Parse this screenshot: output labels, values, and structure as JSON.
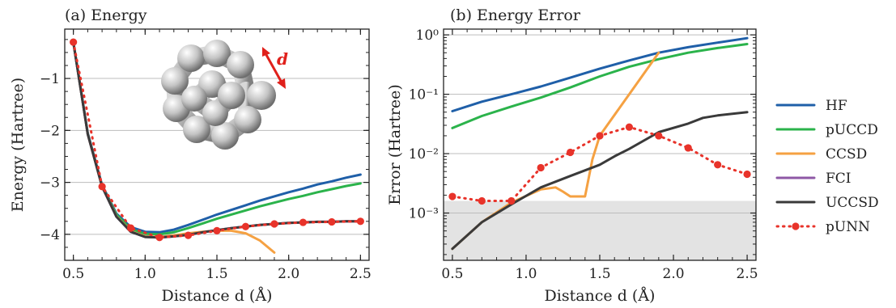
{
  "colors": {
    "HF": "#1f5fa8",
    "pUCCD": "#2bb34b",
    "CCSD": "#f5a142",
    "FCI": "#8e58a6",
    "UCCSD": "#3a3a3a",
    "pUNN": "#e8332a",
    "chem_acc_band": "#e3e3e3",
    "grid": "#bdbdbd"
  },
  "legend": {
    "placement": "right-outside",
    "entries": [
      "HF",
      "pUCCD",
      "CCSD",
      "FCI",
      "UCCSD",
      "pUNN"
    ]
  },
  "chart_data": [
    {
      "type": "line",
      "title": "(a) Energy",
      "xlabel": "Distance d (Å)",
      "ylabel": "Energy (Hartree)",
      "xlim": [
        0.44,
        2.56
      ],
      "ylim": [
        -4.5,
        -0.05
      ],
      "xticks": [
        0.5,
        1.0,
        1.5,
        2.0,
        2.5
      ],
      "xtick_labels": [
        "0.5",
        "1.0",
        "1.5",
        "2.0",
        "2.5"
      ],
      "yticks": [
        -4,
        -3,
        -2,
        -1
      ],
      "ytick_labels": [
        "−4",
        "−3",
        "−2",
        "−1"
      ],
      "grid": "horizontal",
      "annotation": "d",
      "series": [
        {
          "name": "HF",
          "style": "solid",
          "x": [
            0.5,
            0.6,
            0.7,
            0.8,
            0.9,
            1.0,
            1.1,
            1.2,
            1.3,
            1.4,
            1.5,
            1.6,
            1.7,
            1.8,
            1.9,
            2.0,
            2.1,
            2.2,
            2.3,
            2.4,
            2.5
          ],
          "y": [
            -0.3,
            -2.05,
            -3.05,
            -3.6,
            -3.86,
            -3.95,
            -3.96,
            -3.91,
            -3.82,
            -3.72,
            -3.62,
            -3.53,
            -3.44,
            -3.35,
            -3.27,
            -3.19,
            -3.12,
            -3.04,
            -2.98,
            -2.91,
            -2.85
          ]
        },
        {
          "name": "pUCCD",
          "style": "solid",
          "x": [
            0.5,
            0.6,
            0.7,
            0.8,
            0.9,
            1.0,
            1.1,
            1.2,
            1.3,
            1.4,
            1.5,
            1.6,
            1.7,
            1.8,
            1.9,
            2.0,
            2.1,
            2.2,
            2.3,
            2.4,
            2.5
          ],
          "y": [
            -0.3,
            -2.06,
            -3.07,
            -3.62,
            -3.9,
            -3.99,
            -4.0,
            -3.96,
            -3.88,
            -3.79,
            -3.7,
            -3.62,
            -3.54,
            -3.46,
            -3.39,
            -3.32,
            -3.26,
            -3.19,
            -3.13,
            -3.07,
            -3.02
          ]
        },
        {
          "name": "CCSD",
          "style": "solid",
          "x": [
            0.5,
            0.6,
            0.7,
            0.8,
            0.9,
            1.0,
            1.1,
            1.2,
            1.3,
            1.4,
            1.5,
            1.6,
            1.7,
            1.8,
            1.9
          ],
          "y": [
            -0.3,
            -2.07,
            -3.08,
            -3.65,
            -3.94,
            -4.04,
            -4.05,
            -4.02,
            -3.98,
            -3.95,
            -3.93,
            -3.93,
            -3.98,
            -4.12,
            -4.35
          ]
        },
        {
          "name": "FCI",
          "style": "solid",
          "x": [
            0.5,
            0.6,
            0.7,
            0.8,
            0.9,
            1.0,
            1.1,
            1.2,
            1.3,
            1.4,
            1.5,
            1.6,
            1.7,
            1.8,
            1.9,
            2.0,
            2.1,
            2.2,
            2.3,
            2.4,
            2.5
          ],
          "y": [
            -0.3,
            -2.07,
            -3.08,
            -3.66,
            -3.95,
            -4.05,
            -4.06,
            -4.04,
            -4.01,
            -3.96,
            -3.92,
            -3.88,
            -3.85,
            -3.82,
            -3.8,
            -3.78,
            -3.77,
            -3.76,
            -3.76,
            -3.75,
            -3.75
          ]
        },
        {
          "name": "UCCSD",
          "style": "solid",
          "x": [
            0.5,
            0.6,
            0.7,
            0.8,
            0.9,
            1.0,
            1.1,
            1.2,
            1.3,
            1.4,
            1.5,
            1.6,
            1.7,
            1.8,
            1.9,
            2.0,
            2.1,
            2.2,
            2.3,
            2.4,
            2.5
          ],
          "y": [
            -0.3,
            -2.07,
            -3.08,
            -3.66,
            -3.95,
            -4.05,
            -4.06,
            -4.04,
            -4.01,
            -3.96,
            -3.92,
            -3.88,
            -3.85,
            -3.82,
            -3.8,
            -3.78,
            -3.77,
            -3.76,
            -3.76,
            -3.75,
            -3.75
          ]
        },
        {
          "name": "pUNN",
          "style": "dotted-markers",
          "x": [
            0.5,
            0.7,
            0.9,
            1.1,
            1.3,
            1.5,
            1.7,
            1.9,
            2.1,
            2.3,
            2.5
          ],
          "y": [
            -0.3,
            -3.08,
            -3.88,
            -4.06,
            -4.02,
            -3.93,
            -3.85,
            -3.8,
            -3.77,
            -3.76,
            -3.75
          ]
        }
      ]
    },
    {
      "type": "line",
      "title": "(b) Energy Error",
      "xlabel": "Distance d (Å)",
      "ylabel": "Error (Hartree)",
      "yscale": "log",
      "xlim": [
        0.44,
        2.56
      ],
      "ylim": [
        0.00016,
        1.25
      ],
      "xticks": [
        0.5,
        1.0,
        1.5,
        2.0,
        2.5
      ],
      "xtick_labels": [
        "0.5",
        "1.0",
        "1.5",
        "2.0",
        "2.5"
      ],
      "yticks": [
        0.001,
        0.01,
        0.1,
        1
      ],
      "ytick_labels": [
        "10⁻³",
        "10⁻²",
        "10⁻¹",
        "10⁰"
      ],
      "grid": "horizontal",
      "shaded_band": [
        0.00016,
        0.0016
      ],
      "series": [
        {
          "name": "HF",
          "style": "solid",
          "x": [
            0.5,
            0.7,
            0.9,
            1.1,
            1.3,
            1.5,
            1.7,
            1.9,
            2.1,
            2.3,
            2.5
          ],
          "y": [
            0.052,
            0.075,
            0.1,
            0.135,
            0.19,
            0.27,
            0.37,
            0.5,
            0.62,
            0.74,
            0.88
          ]
        },
        {
          "name": "pUCCD",
          "style": "solid",
          "x": [
            0.5,
            0.7,
            0.9,
            1.1,
            1.3,
            1.5,
            1.7,
            1.9,
            2.1,
            2.3,
            2.5
          ],
          "y": [
            0.027,
            0.043,
            0.062,
            0.088,
            0.13,
            0.2,
            0.29,
            0.39,
            0.5,
            0.6,
            0.7
          ]
        },
        {
          "name": "CCSD",
          "style": "solid",
          "x": [
            0.5,
            0.7,
            0.9,
            1.1,
            1.2,
            1.25,
            1.3,
            1.4,
            1.45,
            1.5,
            1.7,
            1.9
          ],
          "y": [
            0.00025,
            0.0007,
            0.0015,
            0.0025,
            0.0027,
            0.0023,
            0.0019,
            0.0019,
            0.008,
            0.02,
            0.1,
            0.5
          ]
        },
        {
          "name": "UCCSD",
          "style": "solid",
          "x": [
            0.5,
            0.7,
            0.9,
            1.1,
            1.3,
            1.5,
            1.6,
            1.7,
            1.9,
            2.1,
            2.2,
            2.3,
            2.5
          ],
          "y": [
            0.00025,
            0.0007,
            0.0014,
            0.0027,
            0.0042,
            0.0065,
            0.009,
            0.012,
            0.023,
            0.032,
            0.04,
            0.044,
            0.05
          ]
        },
        {
          "name": "pUNN",
          "style": "dotted-markers",
          "x": [
            0.5,
            0.7,
            0.9,
            1.1,
            1.3,
            1.5,
            1.7,
            1.9,
            2.1,
            2.3,
            2.5
          ],
          "y": [
            0.0019,
            0.0016,
            0.0016,
            0.0058,
            0.0105,
            0.02,
            0.028,
            0.02,
            0.0125,
            0.0065,
            0.0045
          ]
        }
      ]
    }
  ]
}
